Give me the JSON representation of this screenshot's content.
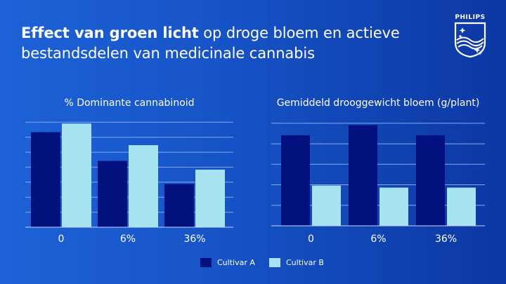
{
  "title": {
    "bold": "Effect van groen licht",
    "rest": " op droge bloem en actieve bestandsdelen van medicinale cannabis"
  },
  "logo": {
    "text": "PHILIPS"
  },
  "colors": {
    "cultivar_a": "#03117f",
    "cultivar_b": "#a6e2f0",
    "grid": "#86a8ef",
    "axis": "#c4d6f5"
  },
  "chart_data": [
    {
      "type": "bar",
      "title": "% Dominante cannabinoid",
      "categories": [
        "0",
        "6%",
        "36%"
      ],
      "series": [
        {
          "name": "Cultivar A",
          "values": [
            6.6,
            4.6,
            3.0
          ]
        },
        {
          "name": "Cultivar B",
          "values": [
            7.2,
            5.7,
            4.0
          ]
        }
      ],
      "ylim": [
        0,
        7.5
      ],
      "grid": true,
      "xlabel": "",
      "ylabel": ""
    },
    {
      "type": "bar",
      "title": "Gemiddeld drooggewicht bloem (g/plant)",
      "categories": [
        "0",
        "6%",
        "36%"
      ],
      "series": [
        {
          "name": "Cultivar A",
          "values": [
            4.5,
            5.0,
            4.5
          ]
        },
        {
          "name": "Cultivar B",
          "values": [
            2.0,
            1.9,
            1.9
          ]
        }
      ],
      "ylim": [
        0,
        5.3
      ],
      "grid": true,
      "xlabel": "",
      "ylabel": ""
    }
  ],
  "legend": {
    "items": [
      "Cultivar A",
      "Cultivar B"
    ],
    "position": "bottom-center"
  }
}
